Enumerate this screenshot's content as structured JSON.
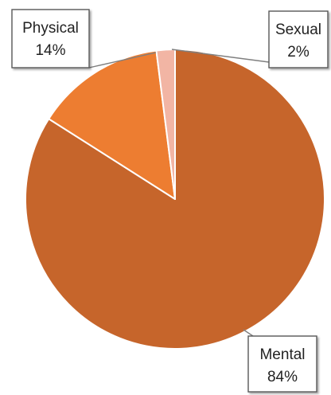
{
  "chart_data": {
    "type": "pie",
    "title": "",
    "slices": [
      {
        "label": "Mental",
        "value": 84,
        "display": "84%",
        "color": "#c6652b"
      },
      {
        "label": "Physical",
        "value": 14,
        "display": "14%",
        "color": "#ed7d31"
      },
      {
        "label": "Sexual",
        "value": 2,
        "display": "2%",
        "color": "#f2b5a4"
      }
    ],
    "legend": "none",
    "data_labels": "callouts with leader lines"
  }
}
